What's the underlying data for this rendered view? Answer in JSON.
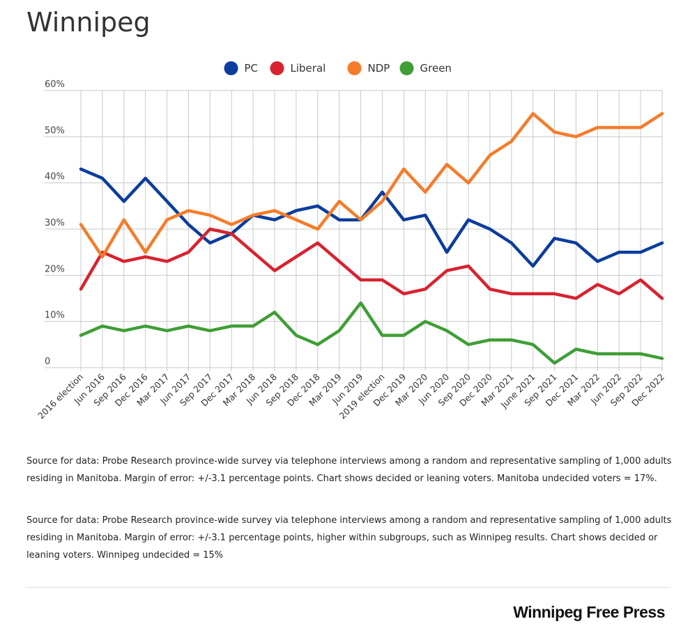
{
  "title": "Winnipeg",
  "note1": "Source for data:  Probe Research province-wide survey via telephone interviews among a random and representative sampling of 1,000 adults residing in Manitoba.  Margin of error: +/-3.1 percentage points. Chart shows decided or leaning voters. Manitoba undecided voters = 17%.",
  "note2": "Source for data:  Probe Research province-wide survey via telephone interviews among a random and representative sampling of 1,000 adults residing in Manitoba.  Margin of error: +/-3.1 percentage points, higher within subgroups, such as Winnipeg results.  Chart shows decided or leaning voters. Winnipeg undecided = 15%",
  "logo": "Winnipeg Free Press",
  "chart_data": {
    "type": "line",
    "ylim": [
      0,
      60
    ],
    "y_ticks": [
      0,
      10,
      20,
      30,
      40,
      50,
      60
    ],
    "y_tick_labels": [
      "0",
      "10%",
      "20%",
      "30%",
      "40%",
      "50%",
      "60%"
    ],
    "legend_position": "top-center",
    "grid": true,
    "categories": [
      "2016 election",
      "Jun 2016",
      "Sep 2016",
      "Dec 2016",
      "Mar 2017",
      "Jun 2017",
      "Sep 2017",
      "Dec 2017",
      "Mar 2018",
      "Jun 2018",
      "Sep 2018",
      "Dec 2018",
      "Mar 2019",
      "Jun 2019",
      "2019 election",
      "Dec 2019",
      "Mar 2020",
      "Jun 2020",
      "Sep 2020",
      "Dec 2020",
      "Mar 2021",
      "June 2021",
      "Sep 2021",
      "Dec 2021",
      "Mar 2022",
      "Jun 2022",
      "Sep 2022",
      "Dec 2022"
    ],
    "series": [
      {
        "name": "PC",
        "color": "#0b3d9c",
        "values": [
          43,
          41,
          36,
          41,
          36,
          31,
          27,
          29,
          33,
          32,
          34,
          35,
          32,
          32,
          38,
          32,
          33,
          25,
          32,
          30,
          27,
          22,
          28,
          27,
          23,
          25,
          25,
          27
        ]
      },
      {
        "name": "Liberal",
        "color": "#d7232f",
        "values": [
          17,
          25,
          23,
          24,
          23,
          25,
          30,
          29,
          25,
          21,
          24,
          27,
          23,
          19,
          19,
          16,
          17,
          21,
          22,
          17,
          16,
          16,
          16,
          15,
          18,
          16,
          19,
          15
        ]
      },
      {
        "name": "NDP",
        "color": "#f47c2a",
        "values": [
          31,
          24,
          32,
          25,
          32,
          34,
          33,
          31,
          33,
          34,
          32,
          30,
          36,
          32,
          36,
          43,
          38,
          44,
          40,
          46,
          49,
          55,
          51,
          50,
          52,
          52,
          52,
          55
        ]
      },
      {
        "name": "Green",
        "color": "#3f9e36",
        "values": [
          7,
          9,
          8,
          9,
          8,
          9,
          8,
          9,
          9,
          12,
          7,
          5,
          8,
          14,
          7,
          7,
          10,
          8,
          5,
          6,
          6,
          5,
          1,
          4,
          3,
          3,
          3,
          2
        ]
      }
    ]
  }
}
